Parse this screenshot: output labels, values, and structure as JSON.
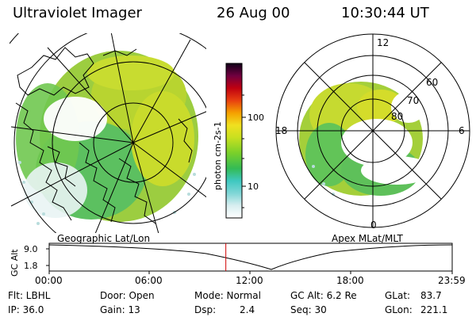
{
  "header": {
    "instrument": "Ultraviolet Imager",
    "date": "26 Aug 00",
    "time": "10:30:44 UT"
  },
  "colorbar": {
    "unit_label": "photon cm-2s-1",
    "ticks": [
      "100",
      "10"
    ]
  },
  "left_map": {
    "caption": "Geographic Lat/Lon"
  },
  "right_map": {
    "caption": "Apex MLat/MLT",
    "lat_labels": [
      "60",
      "70",
      "80"
    ],
    "mlt_labels": [
      "12",
      "18",
      "6",
      "0"
    ]
  },
  "altitude_plot": {
    "ylabel": "GC Alt",
    "yticks": [
      "9.0",
      "1.8"
    ],
    "xticks": [
      "00:00",
      "06:00",
      "12:00",
      "18:00",
      "23:59"
    ],
    "current_time_marker": "10:30:44",
    "marker_color": "#d00000"
  },
  "info": {
    "flt": "Flt: LBHL",
    "ip": "IP: 36.0",
    "door": "Door: Open",
    "gain": "Gain: 13",
    "mode": "Mode: Normal",
    "dsp_label": "Dsp:",
    "dsp_value": "2.4",
    "gcalt": "GC Alt: 6.2 Re",
    "seq": "Seq: 30",
    "glat_label": "GLat:",
    "glat_value": "83.7",
    "glon_label": "GLon:",
    "glon_value": "221.1"
  }
}
